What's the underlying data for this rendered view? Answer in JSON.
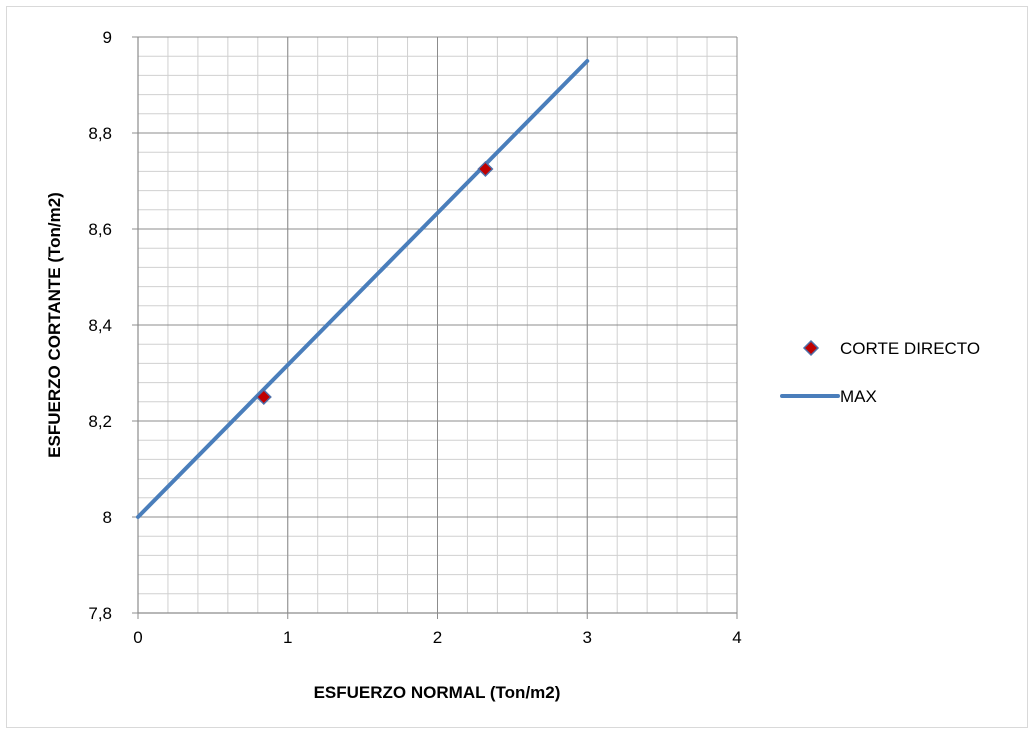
{
  "chart_data": {
    "type": "scatter",
    "xlabel": "ESFUERZO NORMAL (Ton/m2)",
    "ylabel": "ESFUERZO CORTANTE (Ton/m2)",
    "xlim": [
      0,
      4
    ],
    "ylim": [
      7.8,
      9
    ],
    "x_ticks": [
      "0",
      "1",
      "2",
      "3",
      "4"
    ],
    "y_ticks": [
      "7,8",
      "8",
      "8,2",
      "8,4",
      "8,6",
      "8,8",
      "9"
    ],
    "grid": true,
    "legend_position": "right",
    "series": [
      {
        "name": "CORTE DIRECTO",
        "kind": "scatter",
        "marker": "diamond",
        "color": "#c00000",
        "edge_color": "#4f6fa8",
        "x": [
          0.84,
          2.32
        ],
        "y": [
          8.25,
          8.725
        ]
      },
      {
        "name": "MAX",
        "kind": "line",
        "color": "#4a7ebb",
        "x": [
          0,
          3
        ],
        "y": [
          8.0,
          8.95
        ]
      }
    ]
  }
}
